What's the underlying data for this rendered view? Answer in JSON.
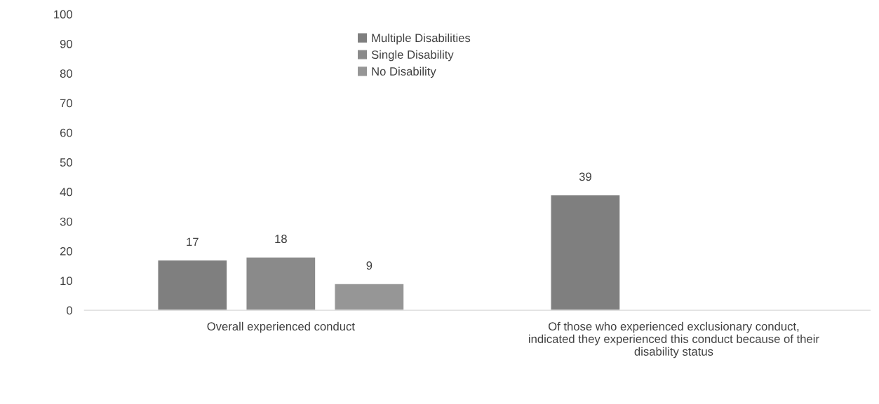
{
  "chart_data": {
    "type": "bar",
    "categories": [
      "Overall experienced conduct",
      "Of those who experienced exclusionary conduct,\nindicated they experienced this conduct because of their\ndisability status"
    ],
    "series": [
      {
        "name": "Multiple Disabilities",
        "color": "#7f7f7f",
        "values": [
          17,
          39
        ]
      },
      {
        "name": "Single Disability",
        "color": "#8a8a8a",
        "values": [
          18,
          null
        ]
      },
      {
        "name": "No Disability",
        "color": "#969696",
        "values": [
          9,
          null
        ]
      }
    ],
    "ylim": [
      0,
      100
    ],
    "yticks": [
      0,
      10,
      20,
      30,
      40,
      50,
      60,
      70,
      80,
      90,
      100
    ],
    "data_labels": true,
    "legend": "top",
    "grid": false
  }
}
